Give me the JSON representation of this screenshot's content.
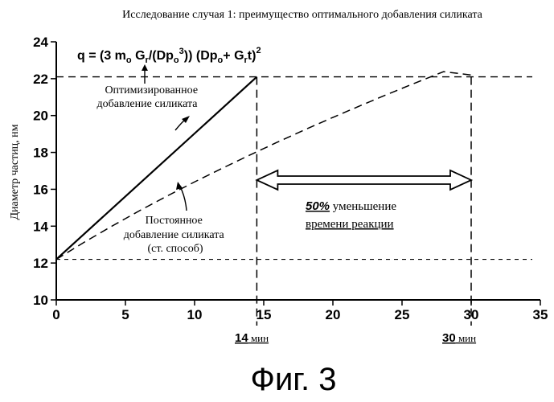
{
  "chart_data": {
    "type": "line",
    "title": "Исследование случая 1: преимущество оптимального добавления силиката",
    "ylabel": "Диаметр частиц, нм",
    "xlabel": "",
    "xlim": [
      0,
      35
    ],
    "ylim": [
      10,
      24
    ],
    "xticks": [
      0,
      5,
      10,
      15,
      20,
      25,
      30,
      35
    ],
    "yticks": [
      10,
      12,
      14,
      16,
      18,
      20,
      22,
      24
    ],
    "grid": false,
    "formula": {
      "q": "q = (3 m",
      "sub_o1": "o",
      "g1": " G",
      "sub_r1": "r",
      "mid": "/(Dp",
      "sub_o2": "o",
      "sup3": "3",
      "mid2": ")) (Dp",
      "sub_o3": "o",
      "plus": "+ G",
      "sub_r2": "r",
      "t": "t)",
      "sup2": "2"
    },
    "series": [
      {
        "style": "solid",
        "x": [
          0,
          14.5
        ],
        "y": [
          12.2,
          22.1
        ],
        "label_lines": [
          "Оптимизированное",
          "добавление силиката"
        ]
      },
      {
        "style": "dashed",
        "x": [
          0,
          2,
          4,
          6,
          8,
          10,
          12,
          14,
          16,
          18,
          20,
          22,
          24,
          26,
          28,
          30
        ],
        "y": [
          12.2,
          13.12,
          13.99,
          14.83,
          15.63,
          16.4,
          17.14,
          17.86,
          18.56,
          19.24,
          19.9,
          20.54,
          21.17,
          21.78,
          22.38,
          22.2
        ],
        "label_lines": [
          "Постоянное",
          "добавление силиката",
          "(ст. способ)"
        ]
      }
    ],
    "reference_lines": {
      "y_upper": 22.1,
      "y_lower": 12.2,
      "x_markers": [
        14.5,
        30
      ]
    },
    "annotations": {
      "arrow_span": [
        14.5,
        30
      ],
      "arrow_y": 16.5,
      "reduction_pct": "50%",
      "reduction_text": " уменьшение",
      "reduction_text2": "времени реакции",
      "marker_labels": [
        {
          "num": "14",
          "unit": " мин"
        },
        {
          "num": "30",
          "unit": " мин"
        }
      ]
    }
  },
  "figure_caption": "Фиг. 3"
}
